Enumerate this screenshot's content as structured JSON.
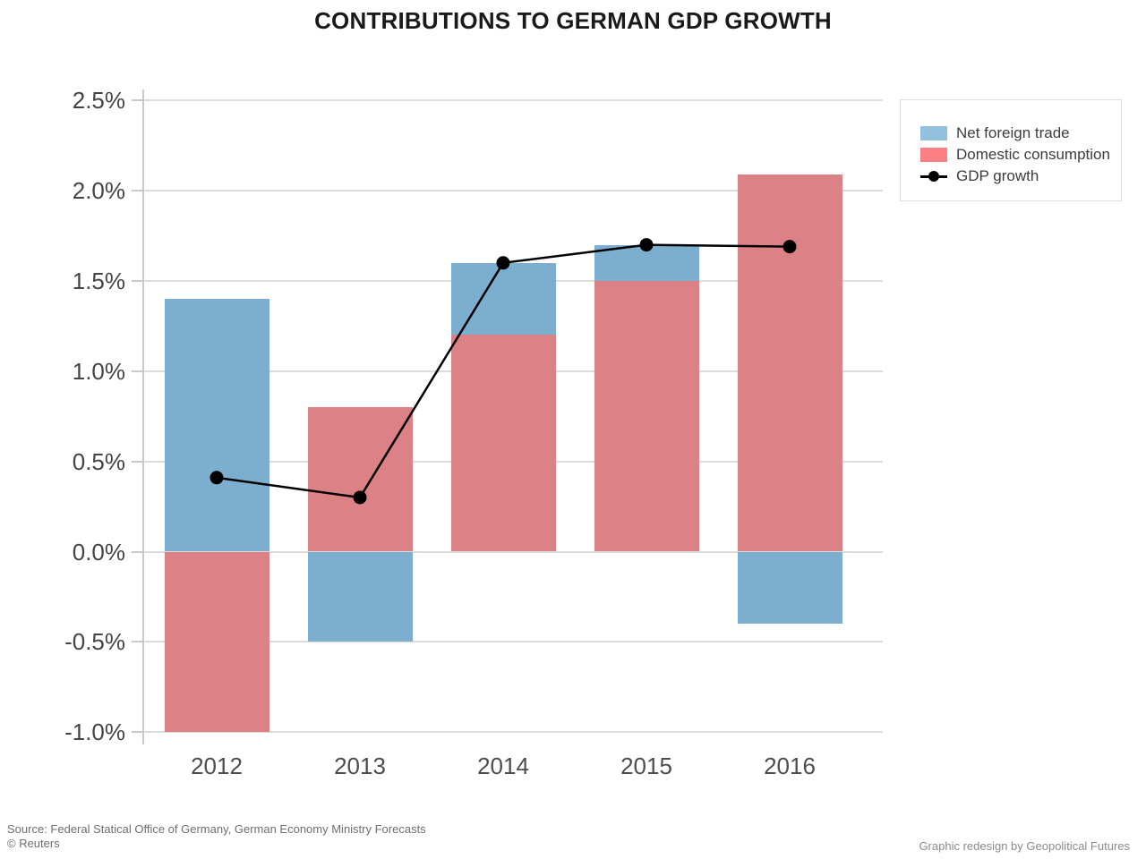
{
  "title": "CONTRIBUTIONS TO GERMAN GDP GROWTH",
  "legend": {
    "items": [
      {
        "label": "Net foreign trade",
        "marker": "swatch",
        "color": "#92C1DD"
      },
      {
        "label": "Domestic consumption",
        "marker": "swatch",
        "color": "#FB8085"
      },
      {
        "label": "GDP growth",
        "marker": "line-dot",
        "color": "#000000"
      }
    ]
  },
  "footer": {
    "source_line1": "Source: Federal Statical Office of Germany, German Economy Ministry Forecasts",
    "source_line2": "© Reuters",
    "credit": "Graphic redesign by Geopolitical Futures"
  },
  "chart_data": {
    "type": "bar",
    "subtype": "stacked-bar-with-line-overlay",
    "title": "CONTRIBUTIONS TO GERMAN GDP GROWTH",
    "categories": [
      "2012",
      "2013",
      "2014",
      "2015",
      "2016"
    ],
    "series": [
      {
        "name": "Net foreign trade",
        "type": "bar",
        "color": "#7CAECF",
        "values": [
          1.4,
          -0.5,
          0.4,
          0.2,
          -0.4
        ]
      },
      {
        "name": "Domestic consumption",
        "type": "bar",
        "color": "#DC8186",
        "values": [
          -1.0,
          0.8,
          1.2,
          1.5,
          2.09
        ]
      },
      {
        "name": "GDP growth",
        "type": "line",
        "color": "#000000",
        "values": [
          0.41,
          0.3,
          1.6,
          1.7,
          1.69
        ]
      }
    ],
    "stacked": true,
    "xlabel": "",
    "ylabel": "",
    "ylim": [
      -1.0,
      2.5
    ],
    "yticks": [
      2.5,
      2.0,
      1.5,
      1.0,
      0.5,
      0.0,
      -0.5,
      -1.0
    ],
    "ytick_labels": [
      "2.5%",
      "2.0%",
      "1.5%",
      "1.0%",
      "0.5%",
      "0.0%",
      "-0.5%",
      "-1.0%"
    ],
    "grid": true,
    "grid_color": "#DCDCDC",
    "legend_position": "outside upper right"
  }
}
